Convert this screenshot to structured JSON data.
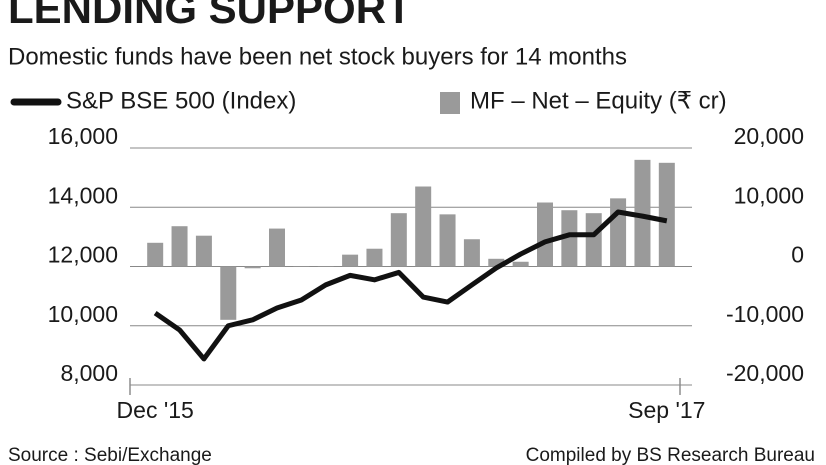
{
  "chart_data": {
    "type": "combo",
    "title": "LENDING SUPPORT",
    "subtitle": "Domestic funds have been net stock buyers for 14 months",
    "categories": [
      "Dec '15",
      null,
      null,
      null,
      null,
      null,
      null,
      null,
      null,
      null,
      null,
      null,
      null,
      null,
      null,
      null,
      null,
      null,
      null,
      null,
      null,
      "Sep '17"
    ],
    "series": [
      {
        "name": "S&P BSE 500 (Index)",
        "type": "line",
        "color": "#111111",
        "values": [
          10430,
          9860,
          8880,
          10000,
          10200,
          10600,
          10870,
          11380,
          11700,
          11550,
          11800,
          10970,
          10800,
          11380,
          11950,
          12420,
          12830,
          13070,
          13070,
          13840,
          13700,
          13540
        ]
      },
      {
        "name": "MF – Net – Equity (₹ cr)",
        "type": "bar",
        "axis": "y2",
        "color": "#9a9a9a",
        "values": [
          4000,
          6800,
          5200,
          -9000,
          -300,
          6400,
          0,
          0,
          2000,
          3000,
          9000,
          13500,
          8800,
          4600,
          1300,
          800,
          10800,
          9500,
          9000,
          11500,
          18000,
          17500
        ]
      }
    ],
    "ylim": [
      8000,
      16000
    ],
    "yticks": [
      {
        "value": 8000,
        "label": "8,000"
      },
      {
        "value": 10000,
        "label": "10,000"
      },
      {
        "value": 12000,
        "label": "12,000"
      },
      {
        "value": 14000,
        "label": "14,000"
      },
      {
        "value": 16000,
        "label": "16,000"
      }
    ],
    "y2lim": [
      -20000,
      20000
    ],
    "y2ticks": [
      {
        "value": -20000,
        "label": "-20,000"
      },
      {
        "value": -10000,
        "label": "-10,000"
      },
      0,
      {
        "value": 10000,
        "label": "10,000"
      },
      {
        "value": 20000,
        "label": "20,000"
      }
    ],
    "grid": true,
    "source": "Source : Sebi/Exchange",
    "credit": "Compiled by BS Research Bureau"
  }
}
